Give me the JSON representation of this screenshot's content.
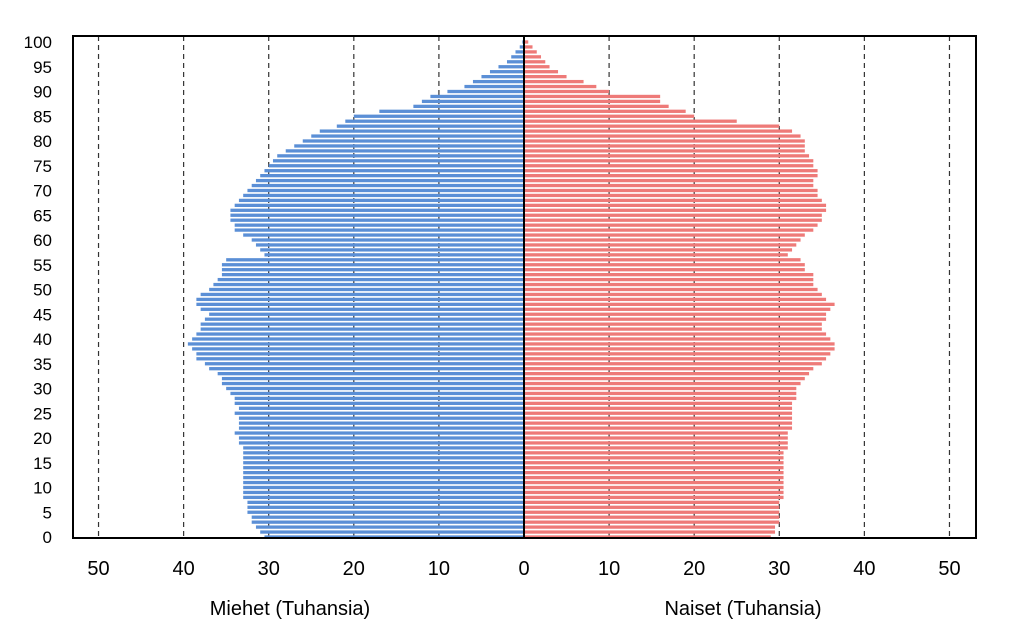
{
  "chart_data": {
    "type": "bar",
    "orientation": "horizontal",
    "chart_kind": "population pyramid",
    "title": "",
    "xlabel_left": "Miehet (Tuhansia)",
    "xlabel_right": "Naiset (Tuhansia)",
    "x_range_each_side": [
      0,
      50
    ],
    "x_ticks": [
      50,
      40,
      30,
      20,
      10,
      0,
      10,
      20,
      30,
      40,
      50
    ],
    "y_range": [
      0,
      100
    ],
    "y_ticks": [
      0,
      5,
      10,
      15,
      20,
      25,
      30,
      35,
      40,
      45,
      50,
      55,
      60,
      65,
      70,
      75,
      80,
      85,
      90,
      95,
      100
    ],
    "grid": "vertical dashed",
    "legend": "none",
    "colors": {
      "men": "#5b8fd6",
      "women": "#ee7a78",
      "frame": "#000000",
      "grid": "#333333"
    },
    "series": [
      {
        "name": "Miehet (Tuhansia)",
        "side": "left",
        "values": [
          30.5,
          31,
          31.5,
          32,
          32,
          32.5,
          32.5,
          32.5,
          33,
          33,
          33,
          33,
          33,
          33,
          33,
          33,
          33,
          33,
          33,
          33.5,
          33.5,
          34,
          33.5,
          33.5,
          33.5,
          34,
          33.5,
          34,
          34,
          34.5,
          35,
          35.5,
          35.5,
          36,
          37,
          37.5,
          38.5,
          38.5,
          39,
          39.5,
          39,
          38.5,
          38,
          38,
          37.5,
          37,
          38,
          38.5,
          38.5,
          38,
          37,
          36.5,
          36,
          35.5,
          35.5,
          35.5,
          35,
          30.5,
          31,
          31.5,
          32,
          33,
          34,
          34,
          34.5,
          34.5,
          34.5,
          34,
          33.5,
          33,
          32.5,
          32,
          31.5,
          31,
          30.5,
          30,
          29.5,
          29,
          28,
          27,
          26,
          25,
          24,
          22,
          21,
          20,
          17,
          13,
          12,
          11,
          9,
          7,
          6,
          5,
          4,
          3,
          2,
          1.5,
          1,
          0.5,
          0.2
        ]
      },
      {
        "name": "Naiset (Tuhansia)",
        "side": "right",
        "values": [
          29,
          29.5,
          29.5,
          30,
          30,
          30,
          30,
          30,
          30.5,
          30.5,
          30.5,
          30.5,
          30.5,
          30.5,
          30.5,
          30.5,
          30.5,
          30.5,
          31,
          31,
          31,
          31,
          31.5,
          31.5,
          31.5,
          31.5,
          31.5,
          31.5,
          32,
          32,
          32,
          32.5,
          33,
          33.5,
          34,
          35,
          35.5,
          36,
          36.5,
          36.5,
          36,
          35.5,
          35,
          35,
          35.5,
          35.5,
          36,
          36.5,
          35.5,
          35,
          34.5,
          34,
          34,
          34,
          33,
          33,
          32.5,
          31,
          31.5,
          32,
          32.5,
          33,
          34,
          34.5,
          35,
          35,
          35.5,
          35.5,
          35,
          34.5,
          34.5,
          34,
          34,
          34.5,
          34.5,
          34,
          34,
          33.5,
          33,
          33,
          33,
          32.5,
          31.5,
          30,
          25,
          20,
          19,
          17,
          16,
          16,
          10,
          8.5,
          7,
          5,
          4,
          3,
          2.5,
          2,
          1.5,
          1,
          0.5
        ]
      }
    ]
  }
}
